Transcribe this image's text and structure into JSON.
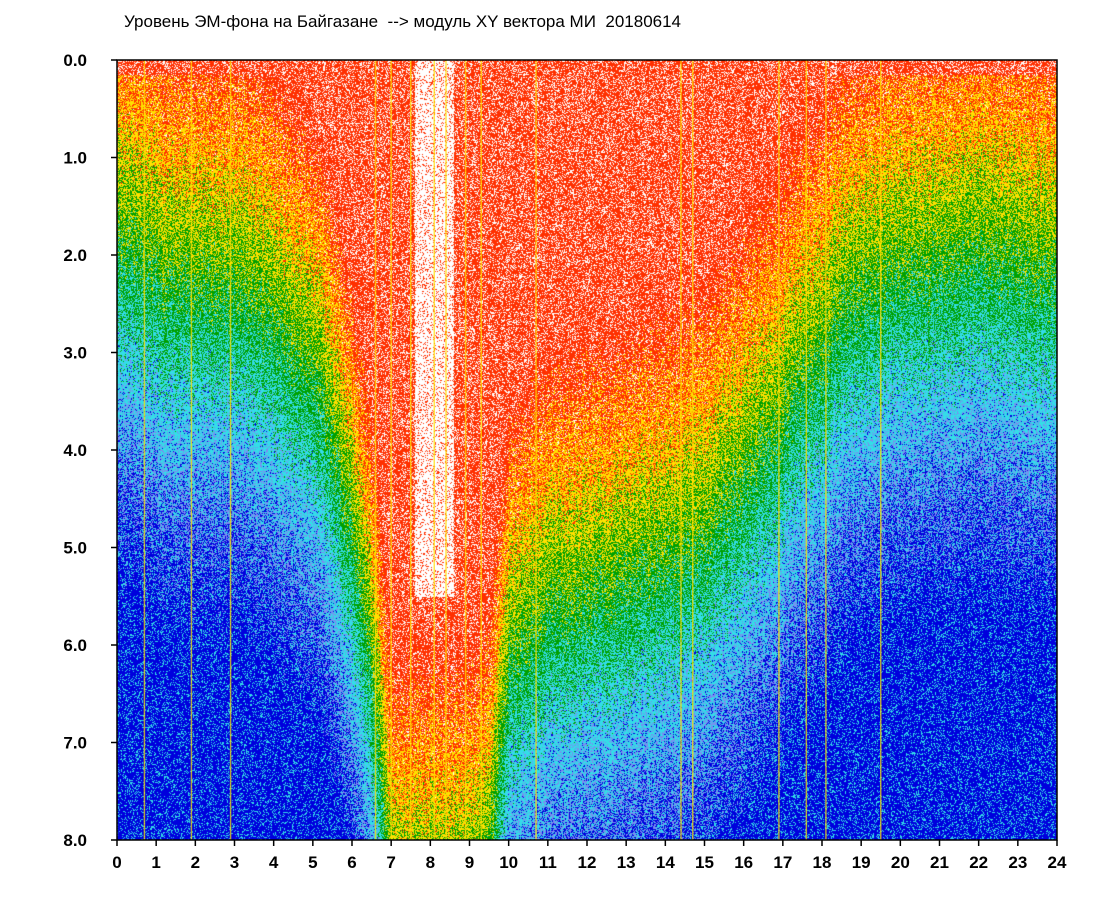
{
  "chart_data": {
    "type": "heatmap",
    "title": "Уровень ЭМ-фона на Байгазане  --> модуль XY вектора МИ  20180614",
    "xlabel": "",
    "ylabel": "",
    "xlim": [
      0,
      24
    ],
    "ylim": [
      8.0,
      0.0
    ],
    "y_axis_inverted": true,
    "x_ticks": [
      "0",
      "1",
      "2",
      "3",
      "4",
      "5",
      "6",
      "7",
      "8",
      "9",
      "10",
      "11",
      "12",
      "13",
      "14",
      "15",
      "16",
      "17",
      "18",
      "19",
      "20",
      "21",
      "22",
      "23",
      "24"
    ],
    "y_ticks": [
      "0.0",
      "1.0",
      "2.0",
      "3.0",
      "4.0",
      "5.0",
      "6.0",
      "7.0",
      "8.0"
    ],
    "colormap": [
      "#0000dd",
      "#7a8cf0",
      "#33dde8",
      "#00a000",
      "#ffe000",
      "#ff3000"
    ],
    "colormap_order": "low to high density",
    "grid": false,
    "legend": "none",
    "background_level_by_hour": {
      "hours": [
        0,
        0.5,
        1,
        2,
        3,
        4,
        5,
        5.5,
        6,
        6.5,
        7,
        7.5,
        8,
        8.5,
        9,
        9.5,
        10,
        11,
        12,
        13,
        14,
        15,
        16,
        17,
        17.5,
        18,
        18.5,
        19,
        19.5,
        20,
        21,
        22,
        23,
        24
      ],
      "level": [
        1.2,
        1.3,
        1.5,
        1.6,
        1.7,
        2.0,
        2.6,
        3.2,
        4.2,
        5.5,
        8.0,
        8.0,
        8.0,
        8.0,
        8.0,
        7.5,
        5.5,
        5.0,
        4.8,
        4.6,
        4.5,
        4.2,
        3.6,
        3.0,
        2.6,
        2.3,
        1.9,
        1.7,
        1.6,
        1.5,
        1.4,
        1.3,
        1.4,
        1.5
      ]
    },
    "saturated_hours": [
      7.6,
      8.6
    ],
    "vertical_streaks_hours": [
      0.7,
      1.9,
      2.9,
      6.6,
      7.0,
      7.5,
      8.1,
      8.4,
      8.9,
      9.3,
      10.7,
      14.4,
      14.7,
      16.9,
      17.6,
      18.1,
      19.5
    ]
  }
}
